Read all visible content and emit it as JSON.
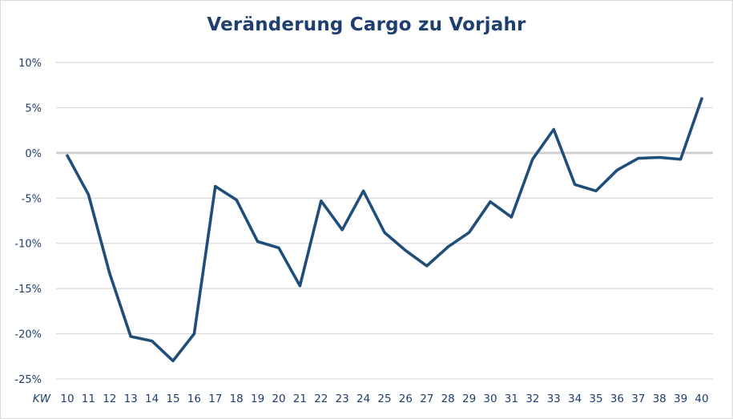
{
  "chart_data": {
    "type": "line",
    "title": "Veränderung Cargo zu Vorjahr",
    "xlabel": "KW",
    "ylabel": "",
    "ylim": [
      -25,
      10
    ],
    "yticks": [
      10,
      5,
      0,
      -5,
      -10,
      -15,
      -20,
      -25
    ],
    "ytick_labels": [
      "10%",
      "5%",
      "0%",
      "-5%",
      "-10%",
      "-15%",
      "-20%",
      "-25%"
    ],
    "grid": true,
    "legend": "none",
    "categories": [
      "10",
      "11",
      "12",
      "13",
      "14",
      "15",
      "16",
      "17",
      "18",
      "19",
      "20",
      "21",
      "22",
      "23",
      "24",
      "25",
      "26",
      "27",
      "28",
      "29",
      "30",
      "31",
      "32",
      "33",
      "34",
      "35",
      "36",
      "37",
      "38",
      "39",
      "40"
    ],
    "series": [
      {
        "name": "Veränderung Cargo zu Vorjahr",
        "color": "#1f4e79",
        "values": [
          -0.3,
          -4.6,
          -13.3,
          -20.3,
          -20.8,
          -23.0,
          -20.0,
          -3.7,
          -5.2,
          -9.8,
          -10.5,
          -14.7,
          -5.3,
          -8.5,
          -4.2,
          -8.8,
          -10.8,
          -12.5,
          -10.4,
          -8.8,
          -5.4,
          -7.1,
          -0.7,
          2.6,
          -3.5,
          -4.2,
          -1.9,
          -0.6,
          -0.5,
          -0.7,
          6.0
        ]
      }
    ]
  },
  "colors": {
    "text": "#1f3f6e",
    "line": "#1f4e79",
    "grid": "#d9d9d9",
    "zero_line": "#d0d0d0"
  }
}
